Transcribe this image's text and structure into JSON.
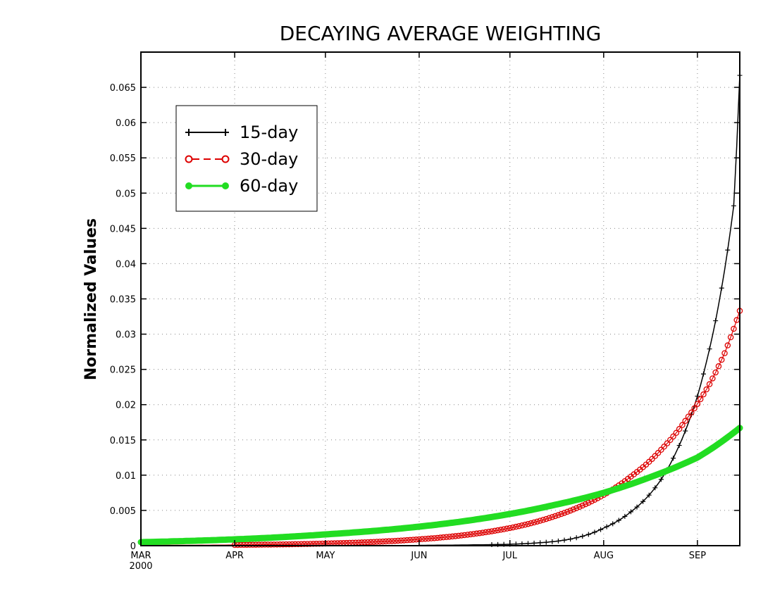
{
  "chart_data": {
    "type": "line",
    "title": "DECAYING AVERAGE WEIGHTING",
    "xlabel": "",
    "ylabel": "Normalized Values",
    "xlim": [
      "2000-03-01",
      "2000-09-15"
    ],
    "ylim": [
      0,
      0.07
    ],
    "x_ticks": [
      {
        "date": "2000-03-01",
        "label": "MAR",
        "sublabel": "2000"
      },
      {
        "date": "2000-04-01",
        "label": "APR"
      },
      {
        "date": "2000-05-01",
        "label": "MAY"
      },
      {
        "date": "2000-06-01",
        "label": "JUN"
      },
      {
        "date": "2000-07-01",
        "label": "JUL"
      },
      {
        "date": "2000-08-01",
        "label": "AUG"
      },
      {
        "date": "2000-09-01",
        "label": "SEP"
      }
    ],
    "y_ticks": [
      "0",
      "0.005",
      "0.01",
      "0.015",
      "0.02",
      "0.025",
      "0.03",
      "0.035",
      "0.04",
      "0.045",
      "0.05",
      "0.055",
      "0.06",
      "0.065"
    ],
    "grid": true,
    "legend_position": "top-left",
    "series": [
      {
        "name": "15-day",
        "color": "#000000",
        "marker": "plus",
        "line_style": "solid",
        "x": [
          "2000-06-01",
          "2000-06-16",
          "2000-07-01",
          "2000-07-16",
          "2000-08-01",
          "2000-08-10",
          "2000-08-15",
          "2000-08-20",
          "2000-08-25",
          "2000-08-29",
          "2000-09-01",
          "2000-09-04",
          "2000-09-07",
          "2000-09-10",
          "2000-09-13",
          "2000-09-15"
        ],
        "y": [
          5e-05,
          0.0001,
          0.0002,
          0.0006,
          0.0025,
          0.0048,
          0.0067,
          0.0094,
          0.0133,
          0.0174,
          0.0212,
          0.0261,
          0.0319,
          0.0391,
          0.0482,
          0.0667
        ]
      },
      {
        "name": "30-day",
        "color": "#dd0000",
        "marker": "circle",
        "line_style": "dashed",
        "x": [
          "2000-03-01",
          "2000-04-01",
          "2000-05-01",
          "2000-06-01",
          "2000-07-01",
          "2000-07-16",
          "2000-08-01",
          "2000-08-10",
          "2000-08-15",
          "2000-08-20",
          "2000-08-25",
          "2000-08-29",
          "2000-09-01",
          "2000-09-05",
          "2000-09-10",
          "2000-09-15"
        ],
        "y": [
          5e-05,
          0.0001,
          0.0003,
          0.0009,
          0.0025,
          0.0042,
          0.0072,
          0.0098,
          0.0115,
          0.0136,
          0.016,
          0.0183,
          0.0201,
          0.0229,
          0.0273,
          0.0333
        ]
      },
      {
        "name": "60-day",
        "color": "#22dd22",
        "marker": "filled-circle",
        "line_style": "solid",
        "x": [
          "2000-03-01",
          "2000-04-01",
          "2000-05-01",
          "2000-06-01",
          "2000-07-01",
          "2000-07-16",
          "2000-08-01",
          "2000-08-15",
          "2000-09-01",
          "2000-09-15"
        ],
        "y": [
          0.0005,
          0.0009,
          0.0016,
          0.0027,
          0.0045,
          0.0058,
          0.0075,
          0.0095,
          0.0125,
          0.0167
        ]
      }
    ]
  }
}
